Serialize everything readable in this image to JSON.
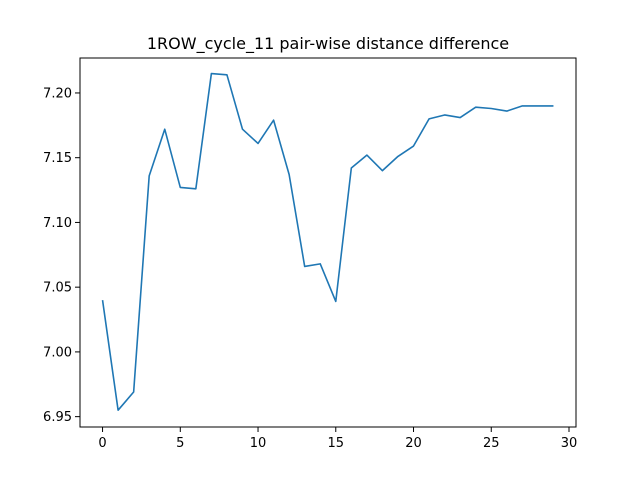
{
  "chart_data": {
    "type": "line",
    "title": "1ROW_cycle_11 pair-wise distance difference",
    "xlabel": "",
    "ylabel": "",
    "xlim": [
      -1.45,
      30.45
    ],
    "ylim": [
      6.942,
      7.227
    ],
    "grid": false,
    "x_ticks": [
      0,
      5,
      10,
      15,
      20,
      25,
      30
    ],
    "x_tick_labels": [
      "0",
      "5",
      "10",
      "15",
      "20",
      "25",
      "30"
    ],
    "y_ticks": [
      6.95,
      7.0,
      7.05,
      7.1,
      7.15,
      7.2
    ],
    "y_tick_labels": [
      "6.95",
      "7.00",
      "7.05",
      "7.10",
      "7.15",
      "7.20"
    ],
    "series": [
      {
        "color": "#1f77b4",
        "x": [
          0,
          1,
          2,
          3,
          4,
          5,
          6,
          7,
          8,
          9,
          10,
          11,
          12,
          13,
          14,
          15,
          16,
          17,
          18,
          19,
          20,
          21,
          22,
          23,
          24,
          25,
          26,
          27,
          28,
          29
        ],
        "values": [
          7.04,
          6.955,
          6.969,
          7.136,
          7.172,
          7.127,
          7.126,
          7.215,
          7.214,
          7.172,
          7.161,
          7.179,
          7.137,
          7.066,
          7.068,
          7.039,
          7.142,
          7.152,
          7.14,
          7.151,
          7.159,
          7.18,
          7.183,
          7.181,
          7.189,
          7.188,
          7.186,
          7.19,
          7.19,
          7.19
        ]
      }
    ]
  }
}
